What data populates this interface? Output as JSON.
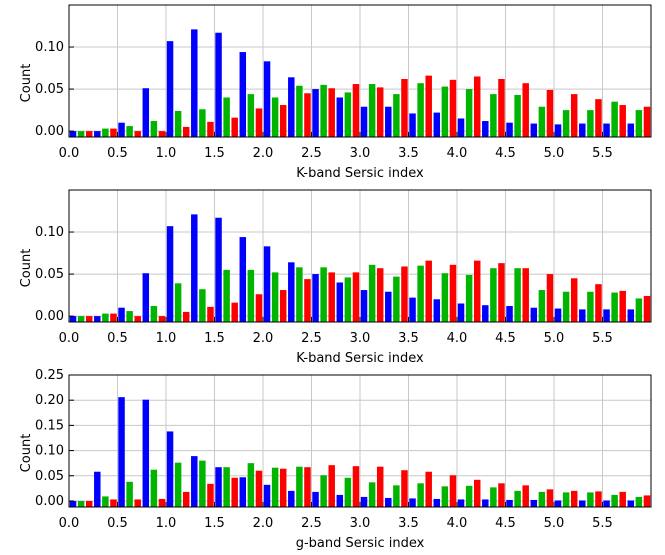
{
  "colors": {
    "series_1": "#0000ff",
    "series_2": "#00b400",
    "series_3": "#ff0000",
    "grid": "#c8c8c8"
  },
  "chart_data": [
    {
      "type": "bar",
      "xlabel": "K-band Sersic index",
      "ylabel": "Count",
      "xlim": [
        0,
        6
      ],
      "ylim": [
        -0.007,
        0.15
      ],
      "grid": true,
      "legend": "none",
      "x_tick_labels": [
        "0.0",
        "0.5",
        "1.0",
        "1.5",
        "2.0",
        "2.5",
        "3.0",
        "3.5",
        "4.0",
        "4.5",
        "5.0",
        "5.5"
      ],
      "y_ticks": [
        0.0,
        0.05,
        0.1
      ],
      "y_tick_labels": [
        "0.00",
        "0.05",
        "0.10"
      ],
      "bin_start": [
        0.0,
        0.25,
        0.5,
        0.75,
        1.0,
        1.25,
        1.5,
        1.75,
        2.0,
        2.25,
        2.5,
        2.75,
        3.0,
        3.25,
        3.5,
        3.75,
        4.0,
        4.25,
        4.5,
        4.75,
        5.0,
        5.25,
        5.5,
        5.75
      ],
      "bin_width": 0.25,
      "series": [
        {
          "values": [
            0.0,
            0.0,
            0.01,
            0.051,
            0.107,
            0.121,
            0.117,
            0.094,
            0.083,
            0.064,
            0.05,
            0.04,
            0.029,
            0.029,
            0.021,
            0.022,
            0.015,
            0.012,
            0.01,
            0.009,
            0.008,
            0.009,
            0.009,
            0.009
          ]
        },
        {
          "values": [
            0.0,
            0.003,
            0.006,
            0.012,
            0.024,
            0.026,
            0.04,
            0.044,
            0.04,
            0.054,
            0.055,
            0.046,
            0.056,
            0.044,
            0.057,
            0.053,
            0.05,
            0.044,
            0.043,
            0.029,
            0.025,
            0.025,
            0.035,
            0.025
          ]
        },
        {
          "values": [
            0.0,
            0.003,
            0.0,
            0.0,
            0.005,
            0.011,
            0.016,
            0.027,
            0.031,
            0.045,
            0.051,
            0.056,
            0.052,
            0.062,
            0.066,
            0.061,
            0.065,
            0.062,
            0.057,
            0.049,
            0.044,
            0.038,
            0.031,
            0.029
          ]
        }
      ]
    },
    {
      "type": "bar",
      "xlabel": "K-band Sersic index",
      "ylabel": "Count",
      "xlim": [
        0,
        6
      ],
      "ylim": [
        -0.007,
        0.15
      ],
      "grid": true,
      "legend": "none",
      "x_tick_labels": [
        "0.0",
        "0.5",
        "1.0",
        "1.5",
        "2.0",
        "2.5",
        "3.0",
        "3.5",
        "4.0",
        "4.5",
        "5.0",
        "5.5"
      ],
      "y_ticks": [
        0.0,
        0.05,
        0.1
      ],
      "y_tick_labels": [
        "0.00",
        "0.05",
        "0.10"
      ],
      "bin_start": [
        0.0,
        0.25,
        0.5,
        0.75,
        1.0,
        1.25,
        1.5,
        1.75,
        2.0,
        2.25,
        2.5,
        2.75,
        3.0,
        3.25,
        3.5,
        3.75,
        4.0,
        4.25,
        4.5,
        4.75,
        5.0,
        5.25,
        5.5,
        5.75
      ],
      "bin_width": 0.25,
      "series": [
        {
          "values": [
            0.0,
            0.0,
            0.01,
            0.051,
            0.107,
            0.121,
            0.117,
            0.094,
            0.083,
            0.064,
            0.05,
            0.04,
            0.031,
            0.029,
            0.022,
            0.02,
            0.015,
            0.013,
            0.012,
            0.01,
            0.009,
            0.008,
            0.008,
            0.008
          ]
        },
        {
          "values": [
            0.0,
            0.003,
            0.006,
            0.012,
            0.039,
            0.032,
            0.055,
            0.055,
            0.052,
            0.058,
            0.058,
            0.046,
            0.061,
            0.047,
            0.06,
            0.051,
            0.049,
            0.057,
            0.057,
            0.031,
            0.029,
            0.029,
            0.028,
            0.021
          ]
        },
        {
          "values": [
            0.0,
            0.003,
            0.0,
            0.0,
            0.005,
            0.011,
            0.016,
            0.026,
            0.031,
            0.044,
            0.052,
            0.052,
            0.057,
            0.059,
            0.066,
            0.061,
            0.066,
            0.063,
            0.057,
            0.05,
            0.045,
            0.038,
            0.03,
            0.024
          ]
        }
      ]
    },
    {
      "type": "bar",
      "xlabel": "g-band Sersic index",
      "ylabel": "Count",
      "xlim": [
        0,
        6
      ],
      "ylim": [
        -0.012,
        0.25
      ],
      "grid": true,
      "legend": "none",
      "x_tick_labels": [
        "0.0",
        "0.5",
        "1.0",
        "1.5",
        "2.0",
        "2.5",
        "3.0",
        "3.5",
        "4.0",
        "4.5",
        "5.0",
        "5.5"
      ],
      "y_ticks": [
        0.0,
        0.05,
        0.1,
        0.15,
        0.2,
        0.25
      ],
      "y_tick_labels": [
        "0.00",
        "0.05",
        "0.10",
        "0.15",
        "0.20",
        "0.25"
      ],
      "bin_start": [
        0.0,
        0.25,
        0.5,
        0.75,
        1.0,
        1.25,
        1.5,
        1.75,
        2.0,
        2.25,
        2.5,
        2.75,
        3.0,
        3.25,
        3.5,
        3.75,
        4.0,
        4.25,
        4.5,
        4.75,
        5.0,
        5.25,
        5.5,
        5.75
      ],
      "bin_width": 0.25,
      "series": [
        {
          "values": [
            0.0,
            0.058,
            0.206,
            0.201,
            0.138,
            0.089,
            0.067,
            0.047,
            0.032,
            0.02,
            0.018,
            0.012,
            0.008,
            0.006,
            0.005,
            0.004,
            0.003,
            0.003,
            0.002,
            0.002,
            0.001,
            0.001,
            0.001,
            0.001
          ]
        },
        {
          "values": [
            0.0,
            0.009,
            0.038,
            0.062,
            0.076,
            0.08,
            0.067,
            0.075,
            0.066,
            0.068,
            0.051,
            0.046,
            0.037,
            0.031,
            0.035,
            0.029,
            0.03,
            0.027,
            0.02,
            0.018,
            0.017,
            0.017,
            0.012,
            0.008
          ]
        },
        {
          "values": [
            0.0,
            0.003,
            0.003,
            0.004,
            0.018,
            0.034,
            0.046,
            0.06,
            0.064,
            0.067,
            0.071,
            0.069,
            0.068,
            0.061,
            0.058,
            0.051,
            0.042,
            0.035,
            0.031,
            0.023,
            0.02,
            0.019,
            0.018,
            0.011
          ]
        }
      ]
    }
  ]
}
